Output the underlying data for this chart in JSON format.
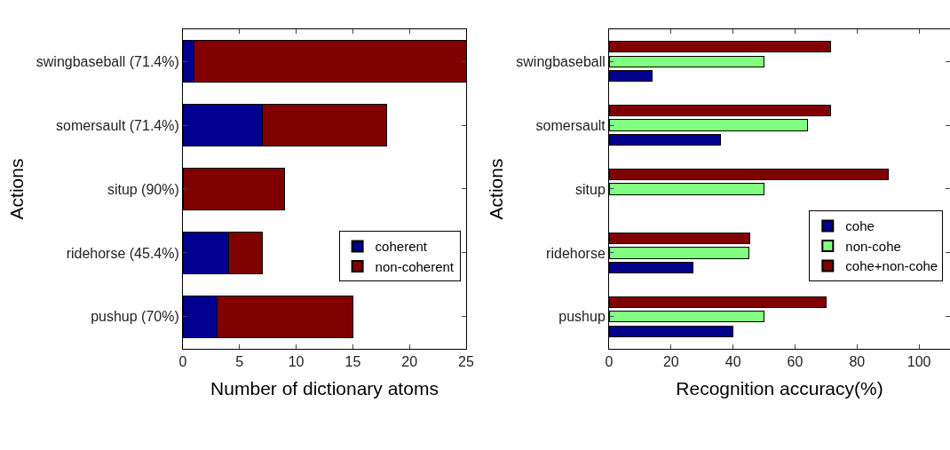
{
  "chart_data": [
    {
      "type": "bar",
      "orientation": "horizontal",
      "stacked": true,
      "xlabel": "Number of dictionary atoms",
      "ylabel": "Actions",
      "categories": [
        "swingbaseball (71.4%)",
        "somersault (71.4%)",
        "situp (90%)",
        "ridehorse (45.4%)",
        "pushup (70%)"
      ],
      "series": [
        {
          "name": "coherent",
          "color": "#00008f",
          "values": [
            1,
            7,
            0,
            4,
            3
          ]
        },
        {
          "name": "non-coherent",
          "color": "#800000",
          "values": [
            24,
            11,
            9,
            3,
            12
          ]
        }
      ],
      "xlim": [
        0,
        25
      ],
      "xticks": [
        0,
        5,
        10,
        15,
        20,
        25
      ],
      "legend": "bottom right"
    },
    {
      "type": "bar",
      "orientation": "horizontal",
      "xlabel": "Recognition accuracy(%)",
      "ylabel": "Actions",
      "categories": [
        "swingbaseball",
        "somersault",
        "situp",
        "ridehorse",
        "pushup"
      ],
      "series": [
        {
          "name": "cohe",
          "color": "#00008f",
          "values": [
            14,
            36,
            null,
            27,
            40
          ]
        },
        {
          "name": "non-cohe",
          "color": "#80ff80",
          "values": [
            50,
            64,
            50,
            45,
            50
          ]
        },
        {
          "name": "cohe+non-cohe",
          "color": "#800000",
          "values": [
            71.4,
            71.4,
            90,
            45.4,
            70
          ]
        }
      ],
      "xlim": [
        0,
        110
      ],
      "xticks": [
        0,
        20,
        40,
        60,
        80,
        100
      ],
      "legend": "bottom right"
    }
  ]
}
